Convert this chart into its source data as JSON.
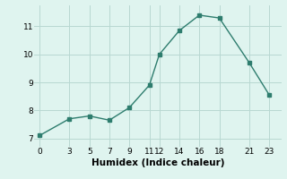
{
  "x": [
    0,
    3,
    5,
    7,
    9,
    11,
    12,
    14,
    16,
    18,
    21,
    23
  ],
  "y": [
    7.1,
    7.7,
    7.8,
    7.65,
    8.1,
    8.9,
    10.0,
    10.85,
    11.4,
    11.3,
    9.7,
    8.55
  ],
  "line_color": "#2e7d6e",
  "marker": "s",
  "marker_size": 2.5,
  "bg_color": "#dff4ef",
  "grid_color": "#b8d8d2",
  "xlabel": "Humidex (Indice chaleur)",
  "xlim": [
    -0.5,
    24.2
  ],
  "ylim": [
    6.7,
    11.75
  ],
  "xticks": [
    0,
    3,
    5,
    7,
    9,
    11,
    12,
    14,
    16,
    18,
    21,
    23
  ],
  "yticks": [
    7,
    8,
    9,
    10,
    11
  ],
  "xlabel_fontsize": 7.5,
  "tick_fontsize": 6.5,
  "linewidth": 1.0
}
